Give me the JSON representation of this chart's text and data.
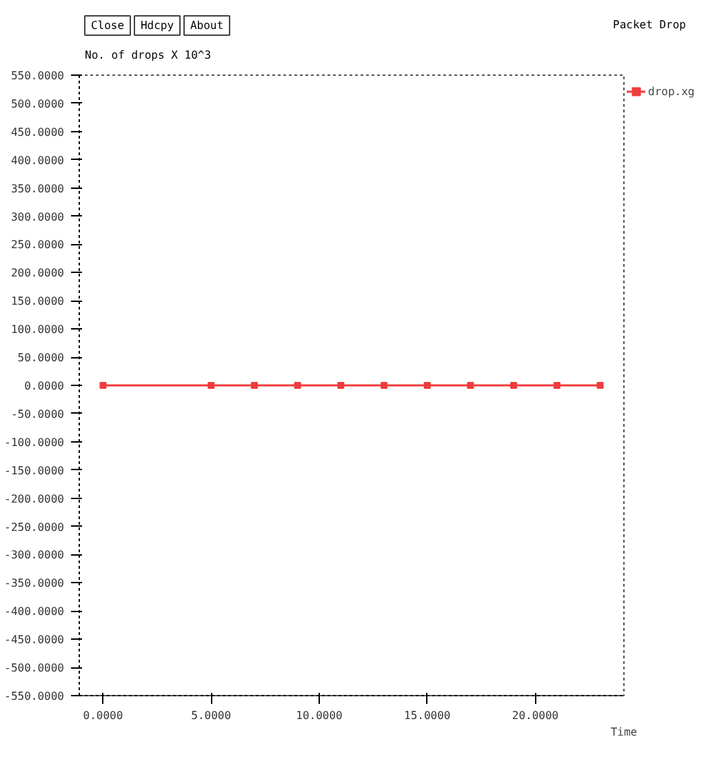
{
  "chart_data": {
    "type": "line",
    "title": "Packet Drop",
    "ylabel": "No. of drops X 10^3",
    "xlabel": "Time",
    "annotations": [
      "Close",
      "Hdcpy",
      "About"
    ],
    "x": [
      0,
      5,
      7,
      9,
      11,
      13,
      15,
      17,
      19,
      21,
      23
    ],
    "series": [
      {
        "name": "drop.xg",
        "color": "#f03c3c",
        "values": [
          0,
          0,
          0,
          0,
          0,
          0,
          0,
          0,
          0,
          0,
          0
        ]
      }
    ],
    "xlim": [
      -1.1,
      24.1
    ],
    "ylim": [
      -550,
      550
    ],
    "xticks": [
      {
        "value": 0,
        "label": "0.0000"
      },
      {
        "value": 5,
        "label": "5.0000"
      },
      {
        "value": 10,
        "label": "10.0000"
      },
      {
        "value": 15,
        "label": "15.0000"
      },
      {
        "value": 20,
        "label": "20.0000"
      }
    ],
    "yticks": [
      {
        "value": 550,
        "label": "550.0000"
      },
      {
        "value": 500,
        "label": "500.0000"
      },
      {
        "value": 450,
        "label": "450.0000"
      },
      {
        "value": 400,
        "label": "400.0000"
      },
      {
        "value": 350,
        "label": "350.0000"
      },
      {
        "value": 300,
        "label": "300.0000"
      },
      {
        "value": 250,
        "label": "250.0000"
      },
      {
        "value": 200,
        "label": "200.0000"
      },
      {
        "value": 150,
        "label": "150.0000"
      },
      {
        "value": 100,
        "label": "100.0000"
      },
      {
        "value": 50,
        "label": "50.0000"
      },
      {
        "value": 0,
        "label": "0.0000"
      },
      {
        "value": -50,
        "label": "-50.0000"
      },
      {
        "value": -100,
        "label": "-100.0000"
      },
      {
        "value": -150,
        "label": "-150.0000"
      },
      {
        "value": -200,
        "label": "-200.0000"
      },
      {
        "value": -250,
        "label": "-250.0000"
      },
      {
        "value": -300,
        "label": "-300.0000"
      },
      {
        "value": -350,
        "label": "-350.0000"
      },
      {
        "value": -400,
        "label": "-400.0000"
      },
      {
        "value": -450,
        "label": "-450.0000"
      },
      {
        "value": -500,
        "label": "-500.0000"
      },
      {
        "value": -550,
        "label": "-550.0000"
      }
    ],
    "grid": false,
    "legend": "right",
    "marker": "square",
    "line_style": "solid"
  }
}
